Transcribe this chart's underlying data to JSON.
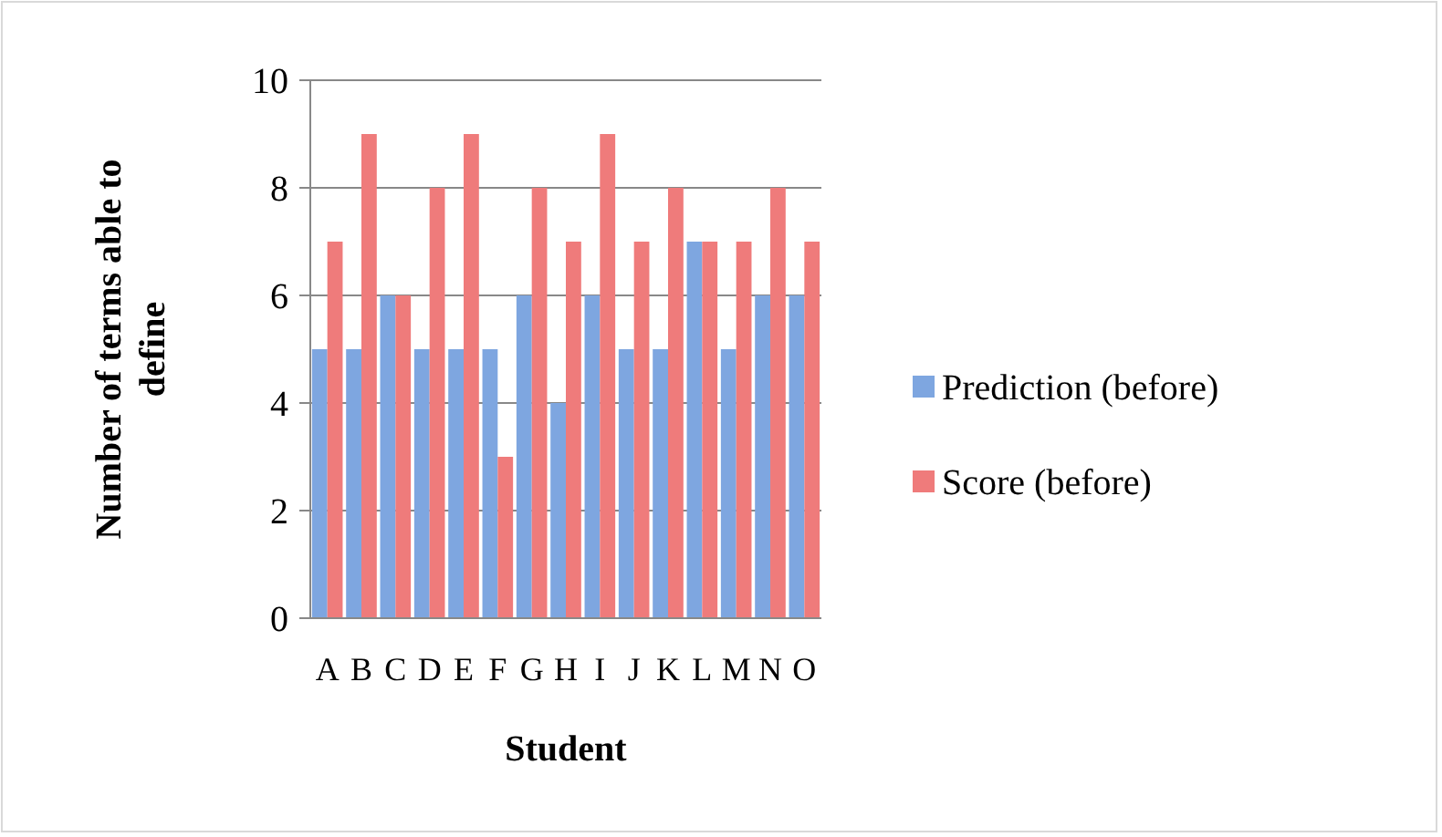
{
  "chart_data": {
    "type": "bar",
    "xlabel": "Student",
    "ylabel": "Number of terms able to define",
    "categories": [
      "A",
      "B",
      "C",
      "D",
      "E",
      "F",
      "G",
      "H",
      "I",
      "J",
      "K",
      "L",
      "M",
      "N",
      "O"
    ],
    "series": [
      {
        "name": "Prediction (before)",
        "color": "#7ea6e0",
        "values": [
          5,
          5,
          6,
          5,
          5,
          5,
          6,
          4,
          6,
          5,
          5,
          7,
          5,
          6,
          6
        ]
      },
      {
        "name": "Score (before)",
        "color": "#ef7b7b",
        "values": [
          7,
          9,
          6,
          8,
          9,
          3,
          8,
          7,
          9,
          7,
          8,
          7,
          7,
          8,
          7
        ]
      }
    ],
    "ylim": [
      0,
      10
    ],
    "yticks": [
      0,
      2,
      4,
      6,
      8,
      10
    ],
    "grid": "y",
    "legend": "right"
  }
}
